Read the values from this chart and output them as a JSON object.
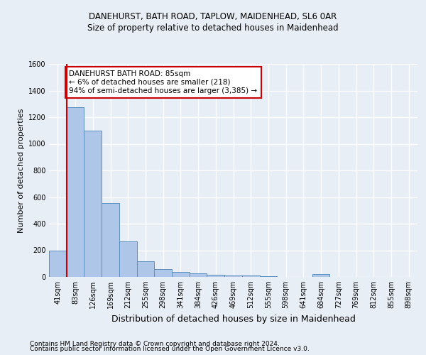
{
  "title1": "DANEHURST, BATH ROAD, TAPLOW, MAIDENHEAD, SL6 0AR",
  "title2": "Size of property relative to detached houses in Maidenhead",
  "xlabel": "Distribution of detached houses by size in Maidenhead",
  "ylabel": "Number of detached properties",
  "categories": [
    "41sqm",
    "83sqm",
    "126sqm",
    "169sqm",
    "212sqm",
    "255sqm",
    "298sqm",
    "341sqm",
    "384sqm",
    "426sqm",
    "469sqm",
    "512sqm",
    "555sqm",
    "598sqm",
    "641sqm",
    "684sqm",
    "727sqm",
    "769sqm",
    "812sqm",
    "855sqm",
    "898sqm"
  ],
  "values": [
    200,
    1275,
    1100,
    555,
    265,
    120,
    60,
    35,
    25,
    15,
    12,
    10,
    8,
    0,
    0,
    20,
    0,
    0,
    0,
    0,
    0
  ],
  "bar_color": "#aec6e8",
  "bar_edge_color": "#5b8fbe",
  "vline_x": 0.5,
  "annotation_text": "DANEHURST BATH ROAD: 85sqm\n← 6% of detached houses are smaller (218)\n94% of semi-detached houses are larger (3,385) →",
  "annotation_box_color": "#ffffff",
  "annotation_border_color": "#cc0000",
  "ylim": [
    0,
    1600
  ],
  "yticks": [
    0,
    200,
    400,
    600,
    800,
    1000,
    1200,
    1400,
    1600
  ],
  "footer1": "Contains HM Land Registry data © Crown copyright and database right 2024.",
  "footer2": "Contains public sector information licensed under the Open Government Licence v3.0.",
  "bg_color": "#e8eef5",
  "plot_bg_color": "#e8eef5",
  "grid_color": "#ffffff",
  "vline_color": "#cc0000",
  "title_fontsize": 8.5,
  "ylabel_fontsize": 8,
  "xlabel_fontsize": 9,
  "tick_fontsize": 7,
  "footer_fontsize": 6.5
}
